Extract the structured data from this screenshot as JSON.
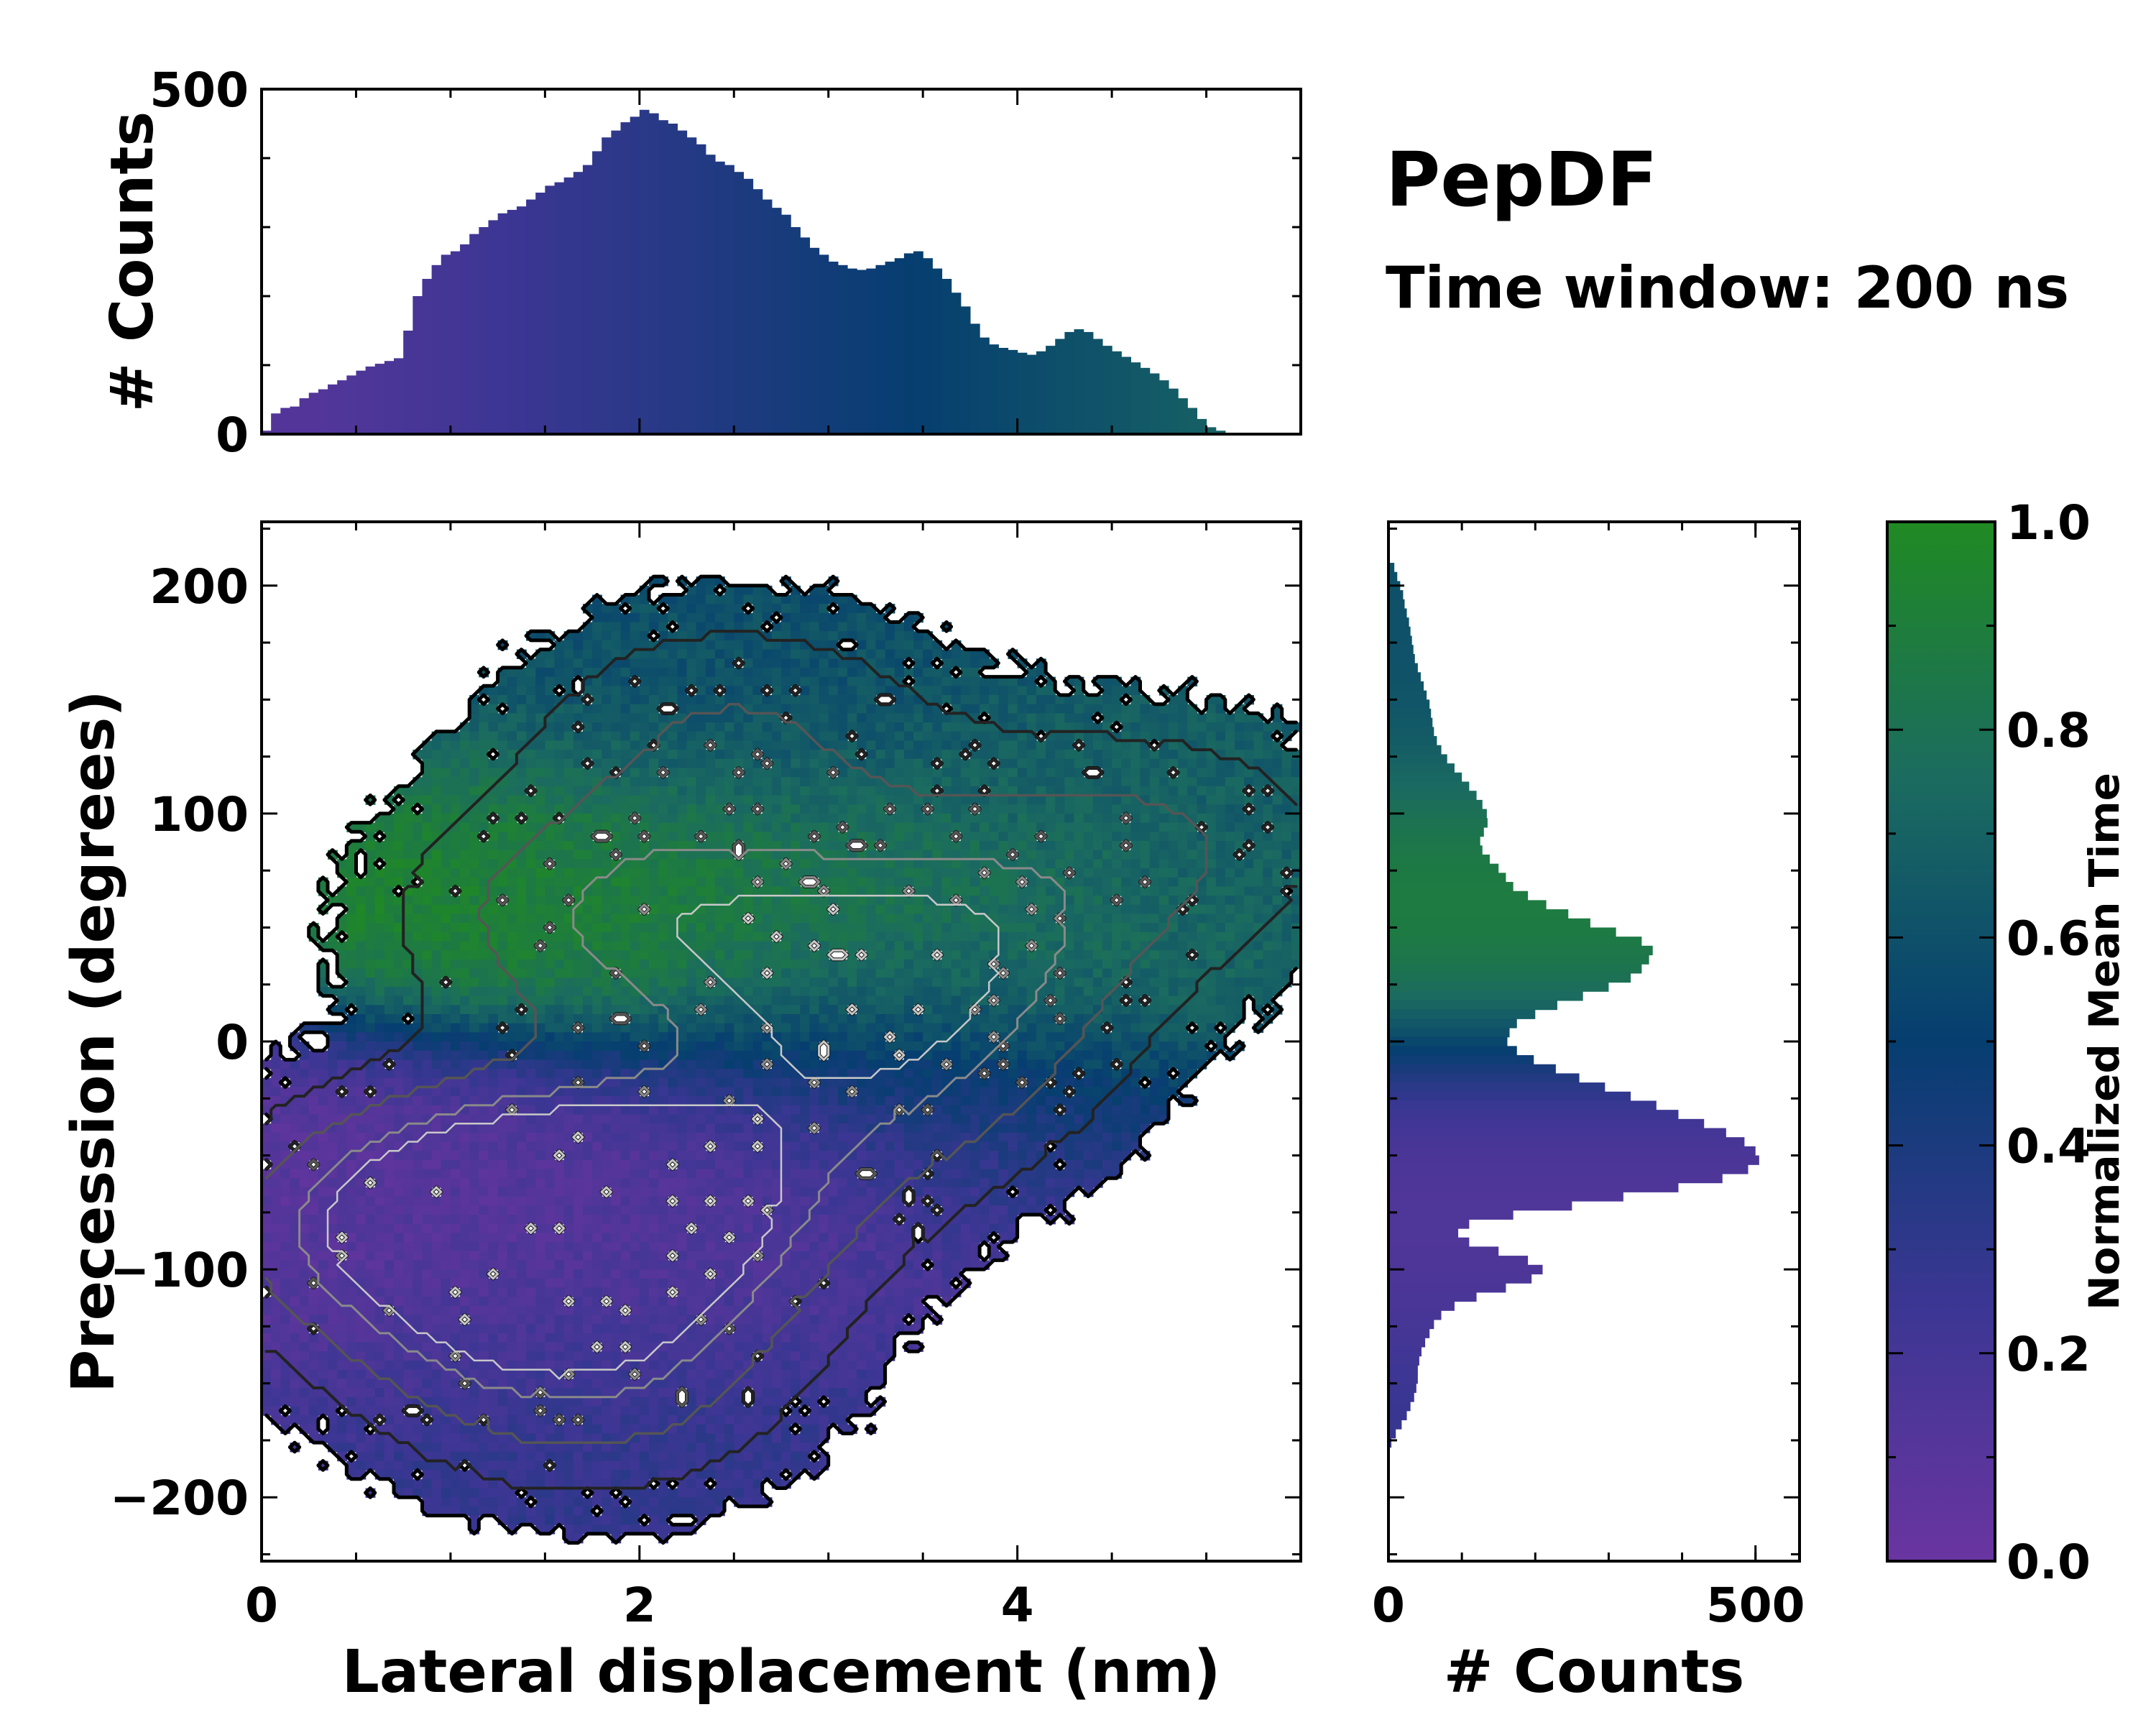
{
  "title": "PepDF",
  "subtitle": "Time window: 200 ns",
  "chart_data": [
    {
      "id": "main",
      "type": "heatmap",
      "xlabel": "Lateral displacement (nm)",
      "ylabel": "Precession (degrees)",
      "xlim": [
        0,
        5.5
      ],
      "ylim": [
        -228,
        228
      ],
      "xticks": [
        0,
        2,
        4
      ],
      "xtick_labels": [
        "0",
        "2",
        "4"
      ],
      "yticks": [
        -200,
        -100,
        0,
        100,
        200
      ],
      "ytick_labels": [
        "−200",
        "−100",
        "0",
        "100",
        "200"
      ],
      "colormap": "viridis-like: purple (0.0) to blue (0.5) to green (1.0)",
      "clusters": [
        {
          "x": 1.9,
          "y": -75,
          "count_level": 1.0,
          "mean_time": 0.12
        },
        {
          "x": 0.9,
          "y": -80,
          "count_level": 0.9,
          "mean_time": 0.1
        },
        {
          "x": 1.7,
          "y": -150,
          "count_level": 0.6,
          "mean_time": 0.3
        },
        {
          "x": 1.85,
          "y": 55,
          "count_level": 0.7,
          "mean_time": 0.95
        },
        {
          "x": 3.5,
          "y": 40,
          "count_level": 0.7,
          "mean_time": 0.85
        },
        {
          "x": 2.5,
          "y": 140,
          "count_level": 0.5,
          "mean_time": 0.6
        },
        {
          "x": 4.7,
          "y": 90,
          "count_level": 0.5,
          "mean_time": 0.68
        },
        {
          "x": 3.3,
          "y": -20,
          "count_level": 0.55,
          "mean_time": 0.3
        }
      ]
    },
    {
      "id": "top-histogram",
      "type": "bar",
      "ylabel": "# Counts",
      "ylim": [
        0,
        500
      ],
      "yticks": [
        0,
        500
      ],
      "ytick_labels": [
        "0",
        "500"
      ],
      "bin_start": 0,
      "bin_width": 0.05,
      "values": [
        5,
        30,
        38,
        40,
        52,
        60,
        65,
        72,
        78,
        85,
        92,
        98,
        102,
        106,
        110,
        150,
        200,
        225,
        245,
        260,
        265,
        275,
        290,
        300,
        310,
        320,
        325,
        330,
        340,
        350,
        360,
        365,
        372,
        380,
        390,
        410,
        430,
        440,
        452,
        460,
        470,
        465,
        455,
        450,
        440,
        430,
        420,
        405,
        395,
        390,
        380,
        370,
        355,
        340,
        328,
        318,
        300,
        285,
        270,
        260,
        250,
        245,
        240,
        238,
        240,
        245,
        250,
        255,
        262,
        265,
        255,
        240,
        225,
        205,
        185,
        160,
        140,
        130,
        125,
        122,
        118,
        115,
        120,
        128,
        138,
        148,
        152,
        148,
        138,
        128,
        120,
        112,
        104,
        96,
        88,
        78,
        66,
        52,
        38,
        22,
        10,
        5
      ],
      "colors_by_mean_time": "purple (left) to blue (center) to green (right)"
    },
    {
      "id": "right-histogram",
      "type": "bar",
      "orientation": "horizontal",
      "xlabel": "# Counts",
      "xlim": [
        0,
        560
      ],
      "xticks": [
        0,
        500
      ],
      "xtick_labels": [
        "0",
        "500"
      ],
      "bin_start": 210,
      "bin_width": -4,
      "values": [
        8,
        12,
        16,
        20,
        22,
        25,
        28,
        30,
        32,
        34,
        36,
        40,
        44,
        48,
        52,
        56,
        58,
        60,
        62,
        66,
        72,
        80,
        90,
        100,
        110,
        120,
        128,
        134,
        135,
        130,
        125,
        128,
        138,
        150,
        160,
        170,
        190,
        215,
        245,
        275,
        310,
        345,
        360,
        355,
        345,
        330,
        300,
        265,
        230,
        200,
        175,
        165,
        162,
        175,
        198,
        228,
        260,
        295,
        330,
        365,
        395,
        430,
        460,
        485,
        500,
        505,
        490,
        455,
        395,
        320,
        250,
        170,
        110,
        95,
        110,
        150,
        190,
        210,
        195,
        160,
        120,
        90,
        72,
        62,
        56,
        50,
        45,
        42,
        40,
        40,
        38,
        35,
        30,
        25,
        18,
        10,
        4
      ]
    },
    {
      "id": "colorbar",
      "type": "colorbar",
      "label": "Normalized Mean Time",
      "range": [
        0,
        1
      ],
      "ticks": [
        0,
        0.2,
        0.4,
        0.6,
        0.8,
        1
      ],
      "tick_labels": [
        "0.0",
        "0.2",
        "0.4",
        "0.6",
        "0.8",
        "1.0"
      ]
    }
  ],
  "colors": {
    "low": "#6a35a0",
    "mid_low": "#2e3a8f",
    "mid": "#063e70",
    "mid_high": "#1b6b60",
    "high": "#208a23",
    "white": "#ffffff"
  }
}
